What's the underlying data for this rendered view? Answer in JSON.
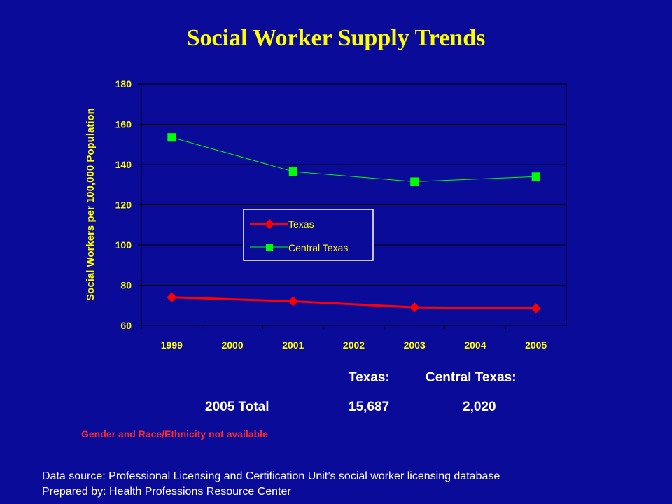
{
  "page": {
    "title": "Social Worker Supply Trends",
    "summary": {
      "header_texas": "Texas:",
      "header_central": "Central Texas:",
      "row_label": "2005 Total",
      "texas_total": "15,687",
      "central_total": "2,020"
    },
    "note": "Gender and Race/Ethnicity not available",
    "source": "Data source: Professional Licensing and Certification Unit’s social worker licensing database",
    "prepared": "Prepared by: Health Professions Resource Center"
  },
  "colors": {
    "background": "#0b0b9a",
    "title": "#ffff00",
    "axis_text": "#ffff00",
    "texas": "#ff0000",
    "central_texas": "#00ff00"
  },
  "chart_data": {
    "type": "line",
    "title": "",
    "xlabel": "",
    "ylabel": "Social Workers per 100,000 Population",
    "categories": [
      "1999",
      "2000",
      "2001",
      "2002",
      "2003",
      "2004",
      "2005"
    ],
    "ylim": [
      60,
      180
    ],
    "yticks": [
      60,
      80,
      100,
      120,
      140,
      160,
      180
    ],
    "grid": "horizontal",
    "legend_position": "center-left",
    "series": [
      {
        "name": "Texas",
        "marker": "diamond",
        "points": [
          [
            "1999",
            74
          ],
          [
            "2001",
            72
          ],
          [
            "2003",
            69
          ],
          [
            "2005",
            68.5
          ]
        ]
      },
      {
        "name": "Central Texas",
        "marker": "square",
        "points": [
          [
            "1999",
            153.5
          ],
          [
            "2001",
            136.5
          ],
          [
            "2003",
            131.5
          ],
          [
            "2005",
            134
          ]
        ]
      }
    ]
  }
}
